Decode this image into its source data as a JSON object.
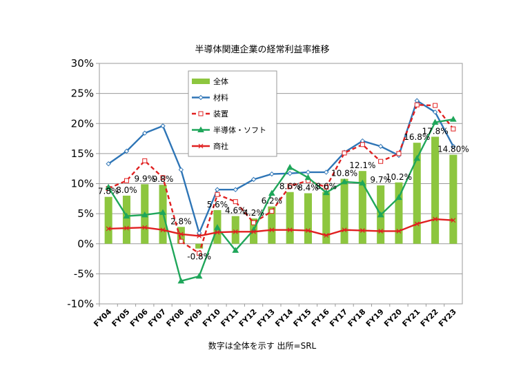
{
  "chart_data": {
    "type": "bar",
    "title": "半導体関連企業の経常利益率推移",
    "note": "数字は全体を示す 出所=SRL",
    "categories": [
      "FY04",
      "FY05",
      "FY06",
      "FY07",
      "FY08",
      "FY09",
      "FY10",
      "FY11",
      "FY12",
      "FY13",
      "FY14",
      "FY15",
      "FY16",
      "FY17",
      "FY18",
      "FY19",
      "FY20",
      "FY21",
      "FY22",
      "FY23"
    ],
    "ylim": [
      -10,
      30
    ],
    "yticks": [
      "-10%",
      "-5%",
      "0%",
      "5%",
      "10%",
      "15%",
      "20%",
      "25%",
      "30%"
    ],
    "grid": true,
    "legend_position": "top-left-inside",
    "bar_series": {
      "name": "全体",
      "color": "#8dc63f",
      "values": [
        7.8,
        8.0,
        9.9,
        9.8,
        2.8,
        -0.8,
        5.6,
        4.6,
        4.2,
        6.2,
        8.6,
        8.4,
        8.6,
        10.8,
        12.1,
        9.7,
        10.2,
        16.8,
        17.8,
        14.8
      ],
      "labels": [
        "7.8%",
        "8.0%",
        "9.9%",
        "9.8%",
        "2.8%",
        "-0.8%",
        "5.6%",
        "4.6%",
        "4.2%",
        "6.2%",
        "8.6%",
        "8.4%",
        "8.6%",
        "10.8%",
        "12.1%",
        "9.7%",
        "10.2%",
        "16.8%",
        "17.8%",
        "14.80%"
      ]
    },
    "series": [
      {
        "name": "材料",
        "color": "#2e75b6",
        "marker": "diamond",
        "dash": "",
        "values": [
          13.3,
          15.4,
          18.4,
          19.6,
          12.3,
          1.8,
          9.0,
          9.0,
          10.7,
          11.6,
          11.7,
          11.9,
          11.9,
          15.2,
          17.1,
          16.2,
          14.7,
          23.8,
          21.9,
          16.2
        ]
      },
      {
        "name": "装置",
        "color": "#e02020",
        "marker": "square",
        "dash": "6,4",
        "values": [
          9.2,
          10.5,
          13.8,
          11.0,
          0.4,
          -1.6,
          8.2,
          7.0,
          3.5,
          5.4,
          9.6,
          10.5,
          9.4,
          15.1,
          16.5,
          13.7,
          15.0,
          23.1,
          23.0,
          19.1
        ]
      },
      {
        "name": "半導体・ソフト",
        "color": "#1fa65a",
        "marker": "triangle",
        "dash": "",
        "values": [
          9.4,
          4.6,
          4.8,
          5.2,
          -6.2,
          -5.4,
          2.7,
          -1.1,
          2.3,
          8.4,
          12.7,
          11.0,
          8.5,
          10.3,
          10.1,
          4.8,
          7.7,
          14.2,
          20.2,
          20.7
        ]
      },
      {
        "name": "商社",
        "color": "#e02020",
        "marker": "x",
        "dash": "",
        "values": [
          2.5,
          2.6,
          2.7,
          2.3,
          1.6,
          1.3,
          1.9,
          2.0,
          2.0,
          2.3,
          2.3,
          2.2,
          1.4,
          2.3,
          2.2,
          2.1,
          2.1,
          3.3,
          4.1,
          3.9
        ]
      }
    ]
  }
}
